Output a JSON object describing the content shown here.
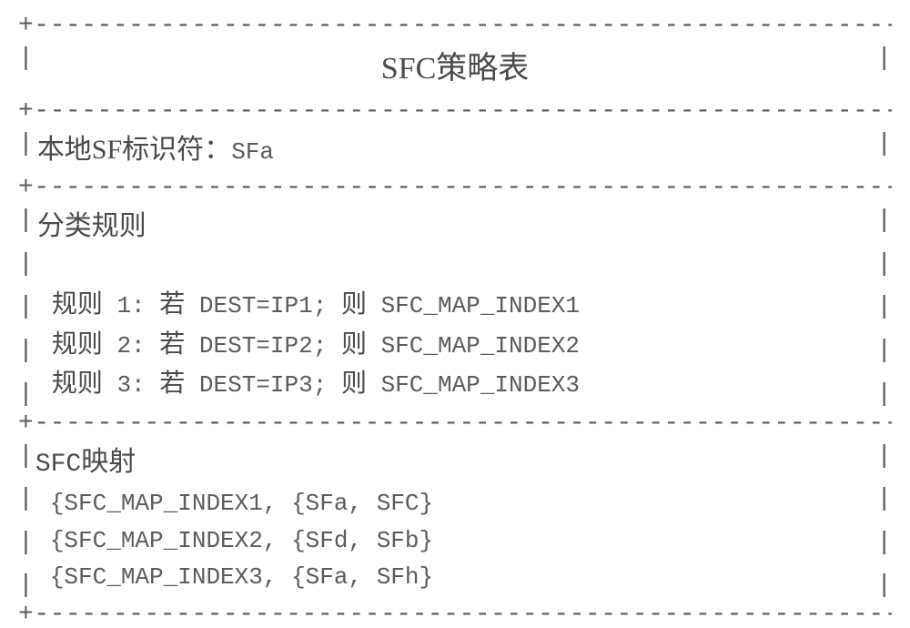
{
  "colors": {
    "text_primary": "#4a4a4a",
    "text_mono": "#5c5c5c",
    "background": "#ffffff"
  },
  "typography": {
    "cn_font": "SimSun",
    "mono_font": "Courier New",
    "title_fontsize": 34,
    "header_fontsize": 30,
    "body_fontsize": 26
  },
  "border": {
    "corner": "+",
    "horizontal": "-",
    "vertical": "|"
  },
  "title": "SFC策略表",
  "local_sf": {
    "label": "本地SF标识符：",
    "value": "SFa"
  },
  "rules": {
    "header": "分类规则",
    "prefix": "规则",
    "if_word": "若",
    "then_word": "则",
    "items": [
      {
        "num": "1",
        "condition": "DEST=IP1",
        "result": "SFC_MAP_INDEX1"
      },
      {
        "num": "2",
        "condition": "DEST=IP2",
        "result": "SFC_MAP_INDEX2"
      },
      {
        "num": "3",
        "condition": "DEST=IP3",
        "result": "SFC_MAP_INDEX3"
      }
    ]
  },
  "mapping": {
    "header_prefix": "SFC",
    "header_suffix": "映射",
    "items": [
      {
        "index": "SFC_MAP_INDEX1",
        "sf1": "SFa",
        "sf2": "SFC"
      },
      {
        "index": "SFC_MAP_INDEX2",
        "sf1": "SFd",
        "sf2": "SFb"
      },
      {
        "index": "SFC_MAP_INDEX3",
        "sf1": "SFa",
        "sf2": "SFh"
      }
    ]
  }
}
